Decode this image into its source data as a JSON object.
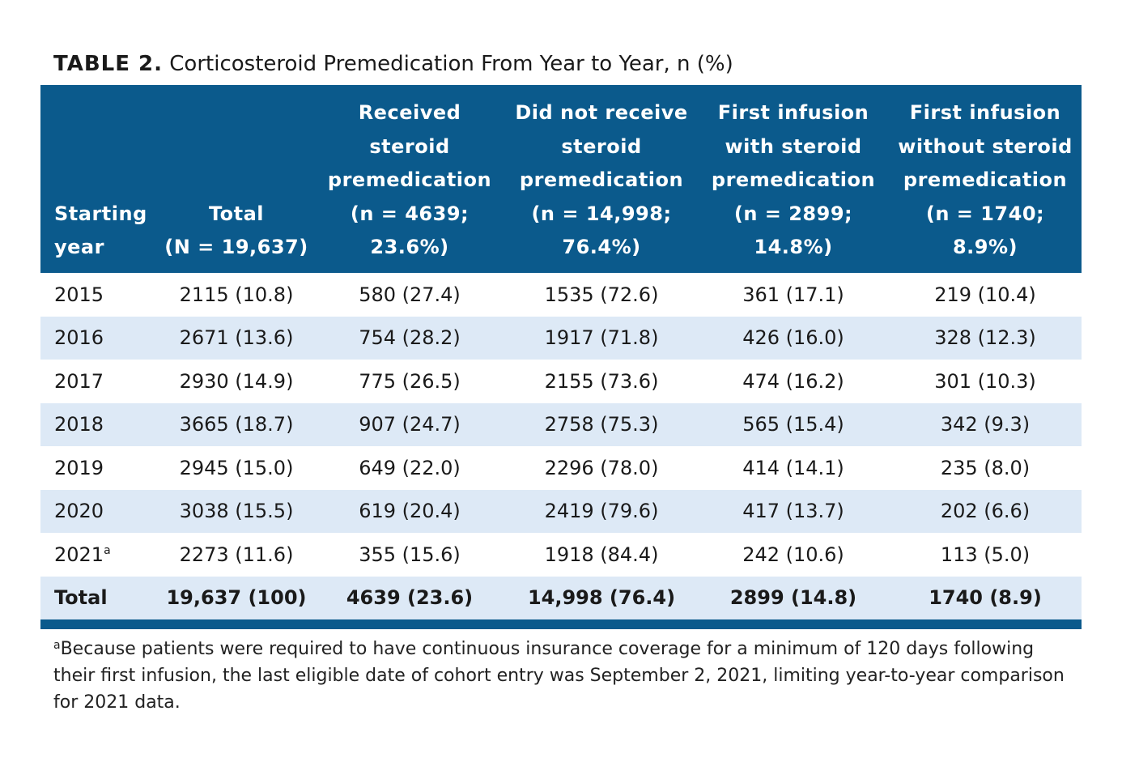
{
  "caption": {
    "label": "TABLE 2.",
    "title": "Corticosteroid Premedication From Year to Year, n (%)"
  },
  "table": {
    "headers": [
      [
        "Starting",
        "year"
      ],
      [
        "Total",
        "(N = 19,637)"
      ],
      [
        "Received",
        "steroid",
        "premedication",
        "(n = 4639;",
        "23.6%)"
      ],
      [
        "Did not receive",
        "steroid",
        "premedication",
        "(n = 14,998;",
        "76.4%)"
      ],
      [
        "First infusion",
        "with steroid",
        "premedication",
        "(n = 2899;",
        "14.8%)"
      ],
      [
        "First infusion",
        "without steroid",
        "premedication",
        "(n = 1740;",
        "8.9%)"
      ]
    ],
    "rows": [
      {
        "year": "2015",
        "sup": "",
        "cells": [
          "2115 (10.8)",
          "580 (27.4)",
          "1535 (72.6)",
          "361 (17.1)",
          "219 (10.4)"
        ]
      },
      {
        "year": "2016",
        "sup": "",
        "cells": [
          "2671 (13.6)",
          "754 (28.2)",
          "1917 (71.8)",
          "426 (16.0)",
          "328 (12.3)"
        ]
      },
      {
        "year": "2017",
        "sup": "",
        "cells": [
          "2930 (14.9)",
          "775 (26.5)",
          "2155 (73.6)",
          "474 (16.2)",
          "301 (10.3)"
        ]
      },
      {
        "year": "2018",
        "sup": "",
        "cells": [
          "3665 (18.7)",
          "907 (24.7)",
          "2758 (75.3)",
          "565 (15.4)",
          "342 (9.3)"
        ]
      },
      {
        "year": "2019",
        "sup": "",
        "cells": [
          "2945 (15.0)",
          "649 (22.0)",
          "2296 (78.0)",
          "414 (14.1)",
          "235 (8.0)"
        ]
      },
      {
        "year": "2020",
        "sup": "",
        "cells": [
          "3038 (15.5)",
          "619 (20.4)",
          "2419 (79.6)",
          "417 (13.7)",
          "202 (6.6)"
        ]
      },
      {
        "year": "2021",
        "sup": "a",
        "cells": [
          "2273 (11.6)",
          "355 (15.6)",
          "1918 (84.4)",
          "242 (10.6)",
          "113 (5.0)"
        ]
      }
    ],
    "total_row": {
      "label": "Total",
      "cells": [
        "19,637 (100)",
        "4639 (23.6)",
        "14,998 (76.4)",
        "2899 (14.8)",
        "1740 (8.9)"
      ]
    }
  },
  "footnote": {
    "marker": "a",
    "text": "Because patients were required to have continuous insurance coverage for a minimum of 120 days following their first infusion, the last eligible date of cohort entry was September 2, 2021, limiting year-to-year comparison for 2021 data."
  },
  "colors": {
    "header_bg": "#0b5a8c",
    "alt_row_bg": "#dde9f6"
  }
}
